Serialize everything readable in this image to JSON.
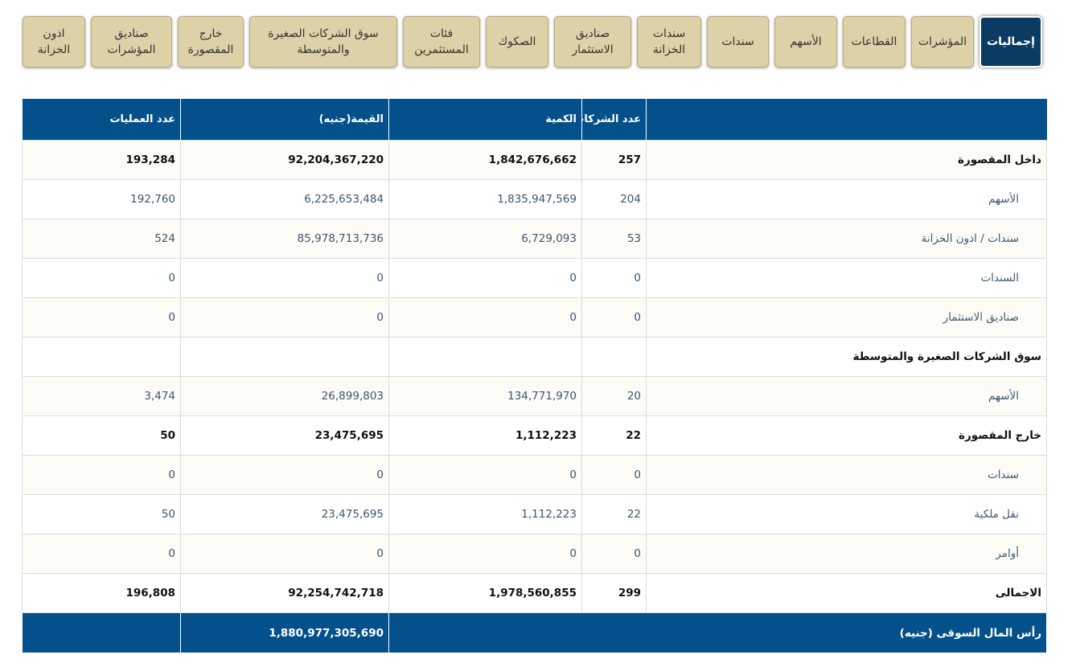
{
  "tabs": [
    "إجماليات",
    "المؤشرات",
    "القطاعات",
    "الأسهم",
    "سندات",
    "سندات الخزانة",
    "صناديق الاستثمار",
    "الصكوك",
    "فئات المستثمرين",
    "سوق الشركات الصغيرة والمتوسطة",
    "خارج المقصورة",
    "صناديق المؤشرات",
    "اذون الخزانة"
  ],
  "table": {
    "header": [
      "عدد الشركات",
      "الكمية",
      "القيمة(جنيه)",
      "عدد العمليات"
    ],
    "rows": [
      {
        "label": "داخل المقصورة",
        "cells": [
          "257",
          "1,842,676,662",
          "92,204,367,220",
          "193,284"
        ]
      },
      {
        "label": "الأسهم",
        "cells": [
          "204",
          "1,835,947,569",
          "6,225,653,484",
          "192,760"
        ]
      },
      {
        "label": "سندات / اذون الخزانة",
        "cells": [
          "53",
          "6,729,093",
          "85,978,713,736",
          "524"
        ]
      },
      {
        "label": "السندات",
        "cells": [
          "0",
          "0",
          "0",
          "0"
        ]
      },
      {
        "label": "صناديق الاستثمار",
        "cells": [
          "0",
          "0",
          "0",
          "0"
        ]
      },
      {
        "label": "سوق الشركات الصغيرة والمتوسطة",
        "cells": []
      },
      {
        "label": "الأسهم",
        "cells": [
          "20",
          "134,771,970",
          "26,899,803",
          "3,474"
        ]
      },
      {
        "label": "خارج المقصورة",
        "cells": [
          "22",
          "1,112,223",
          "23,475,695",
          "50"
        ]
      },
      {
        "label": "سندات",
        "cells": [
          "0",
          "0",
          "0",
          "0"
        ]
      },
      {
        "label": "نقل ملكية",
        "cells": [
          "22",
          "1,112,223",
          "23,475,695",
          "50"
        ]
      },
      {
        "label": "أوامر",
        "cells": [
          "0",
          "0",
          "0",
          "0"
        ]
      },
      {
        "label": "الاجمالى",
        "cells": [
          "299",
          "1,978,560,855",
          "92,254,742,718",
          "196,808"
        ]
      }
    ],
    "footer": {
      "label": "رأس المال السوقى (جنيه)",
      "value": "1,880,977,305,690"
    }
  }
}
